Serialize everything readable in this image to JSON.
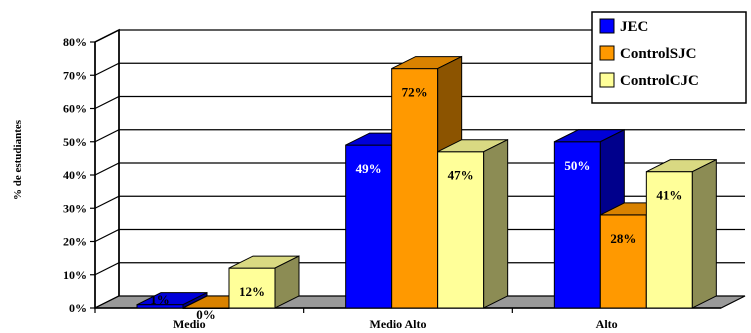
{
  "chart_data": {
    "type": "bar",
    "categories": [
      "Medio",
      "Medio Alto",
      "Alto"
    ],
    "series": [
      {
        "name": "JEC",
        "values": [
          1,
          49,
          50
        ],
        "labels": [
          "1%",
          "49%",
          "50%"
        ],
        "color": "#0000ff"
      },
      {
        "name": "ControlSJC",
        "values": [
          0,
          72,
          28
        ],
        "labels": [
          "0%",
          "72%",
          "28%"
        ],
        "color": "#ff9900"
      },
      {
        "name": "ControlCJC",
        "values": [
          12,
          47,
          41
        ],
        "labels": [
          "12%",
          "47%",
          "41%"
        ],
        "color": "#ffff99"
      }
    ],
    "ylabel": "% de estudiantes",
    "ylim": [
      0,
      80
    ],
    "yticks": [
      "0%",
      "10%",
      "20%",
      "30%",
      "40%",
      "50%",
      "60%",
      "70%",
      "80%"
    ],
    "grid": true,
    "legend": "top-right",
    "three_d": true
  }
}
